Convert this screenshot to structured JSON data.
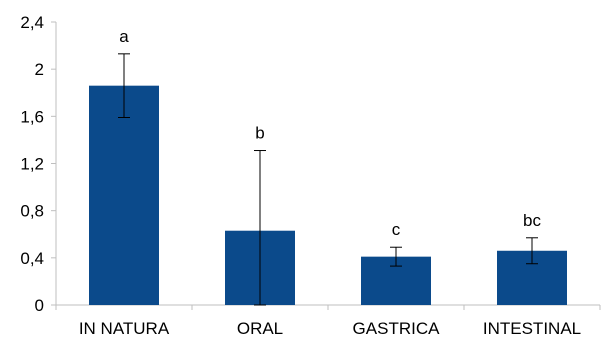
{
  "chart_data": {
    "type": "bar",
    "categories": [
      "IN NATURA",
      "ORAL",
      "GASTRICA",
      "INTESTINAL"
    ],
    "values": [
      1.86,
      0.63,
      0.41,
      0.46
    ],
    "error_bars": {
      "upper": [
        2.13,
        1.31,
        0.49,
        0.57
      ],
      "lower": [
        1.59,
        0.0,
        0.33,
        0.35
      ]
    },
    "significance_letters": [
      "a",
      "b",
      "c",
      "bc"
    ],
    "y_ticks": [
      "0",
      "0,4",
      "0,8",
      "1,2",
      "1,6",
      "2",
      "2,4"
    ],
    "ylim": [
      0,
      2.4
    ],
    "title": "",
    "xlabel": "",
    "ylabel": "",
    "grid": false,
    "colors": {
      "bar": "#0B4A8B",
      "axis": "#BFBFBF",
      "error": "#000000"
    }
  }
}
